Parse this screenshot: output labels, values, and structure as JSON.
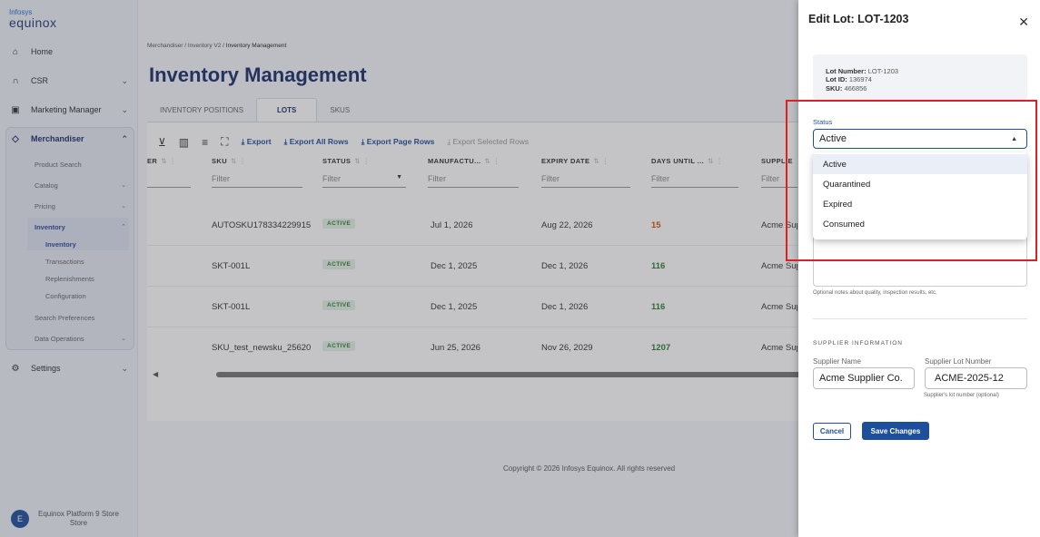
{
  "logo": {
    "line1": "Infosys",
    "line2": "equinox"
  },
  "sidebar": {
    "items": [
      {
        "label": "Home",
        "icon": "home-icon"
      },
      {
        "label": "CSR",
        "icon": "headset-icon"
      },
      {
        "label": "Marketing Manager",
        "icon": "megaphone-icon"
      },
      {
        "label": "Merchandiser",
        "icon": "tag-icon"
      },
      {
        "label": "Settings",
        "icon": "gear-icon"
      }
    ],
    "merch_sub": [
      "Product Search",
      "Catalog",
      "Pricing",
      "Inventory",
      "Search Preferences",
      "Data Operations"
    ],
    "inventory_sub": [
      "Inventory",
      "Transactions",
      "Replenishments",
      "Configuration"
    ],
    "user": {
      "initial": "E",
      "name_line1": "Equinox Platform 9 Store",
      "name_line2": "Store"
    }
  },
  "breadcrumb": {
    "part1": "Merchandiser",
    "part2": "Inventory V2",
    "part3": "Inventory Management",
    "sep": "/"
  },
  "page_title": "Inventory Management",
  "tabs": [
    "INVENTORY POSITIONS",
    "LOTS",
    "SKUS"
  ],
  "toolbar": {
    "export": "Export",
    "export_all": "Export All Rows",
    "export_page": "Export Page Rows",
    "export_selected": "Export Selected Rows"
  },
  "table": {
    "columns": [
      "ER",
      "SKU",
      "STATUS",
      "MANUFACTU...",
      "EXPIRY DATE",
      "DAYS UNTIL ...",
      "SUPPLIE"
    ],
    "filter_placeholder": "Filter",
    "rows": [
      {
        "sku": "AUTOSKU178334229915",
        "status": "ACTIVE",
        "mfg": "Jul 1, 2026",
        "expiry": "Aug 22, 2026",
        "days": "15",
        "days_color": "#d35400",
        "supplier": "Acme Sup"
      },
      {
        "sku": "SKT-001L",
        "status": "ACTIVE",
        "mfg": "Dec 1, 2025",
        "expiry": "Dec 1, 2026",
        "days": "116",
        "days_color": "#2e7d32",
        "supplier": "Acme Sup"
      },
      {
        "sku": "SKT-001L",
        "status": "ACTIVE",
        "mfg": "Dec 1, 2025",
        "expiry": "Dec 1, 2026",
        "days": "116",
        "days_color": "#2e7d32",
        "supplier": "Acme Sup"
      },
      {
        "sku": "SKU_test_newsku_25620",
        "status": "ACTIVE",
        "mfg": "Jun 25, 2026",
        "expiry": "Nov 26, 2029",
        "days": "1207",
        "days_color": "#2e7d32",
        "supplier": "Acme Sup"
      }
    ]
  },
  "copyright": "Copyright © 2026 Infosys Equinox. All rights reserved",
  "drawer": {
    "title": "Edit Lot: LOT-1203",
    "lot_number_label": "Lot Number:",
    "lot_number": "LOT-1203",
    "lot_id_label": "Lot ID:",
    "lot_id": "136974",
    "sku_label": "SKU:",
    "sku": "466856",
    "status_label": "Status",
    "status_value": "Active",
    "status_options": [
      "Active",
      "Quarantined",
      "Expired",
      "Consumed"
    ],
    "notes_helper": "Optional notes about quality, inspection results, etc.",
    "supplier_section": "SUPPLIER INFORMATION",
    "supplier_name_label": "Supplier Name",
    "supplier_name": "Acme Supplier Co.",
    "supplier_lot_label": "Supplier Lot Number",
    "supplier_lot": "ACME-2025-12",
    "supplier_lot_helper": "Supplier's lot number (optional)",
    "cancel": "Cancel",
    "save": "Save Changes"
  },
  "colors": {
    "primary": "#1d4f9c",
    "title": "#1b2f6b",
    "highlight": "#e0201c",
    "active_badge": "#2e7d32"
  }
}
